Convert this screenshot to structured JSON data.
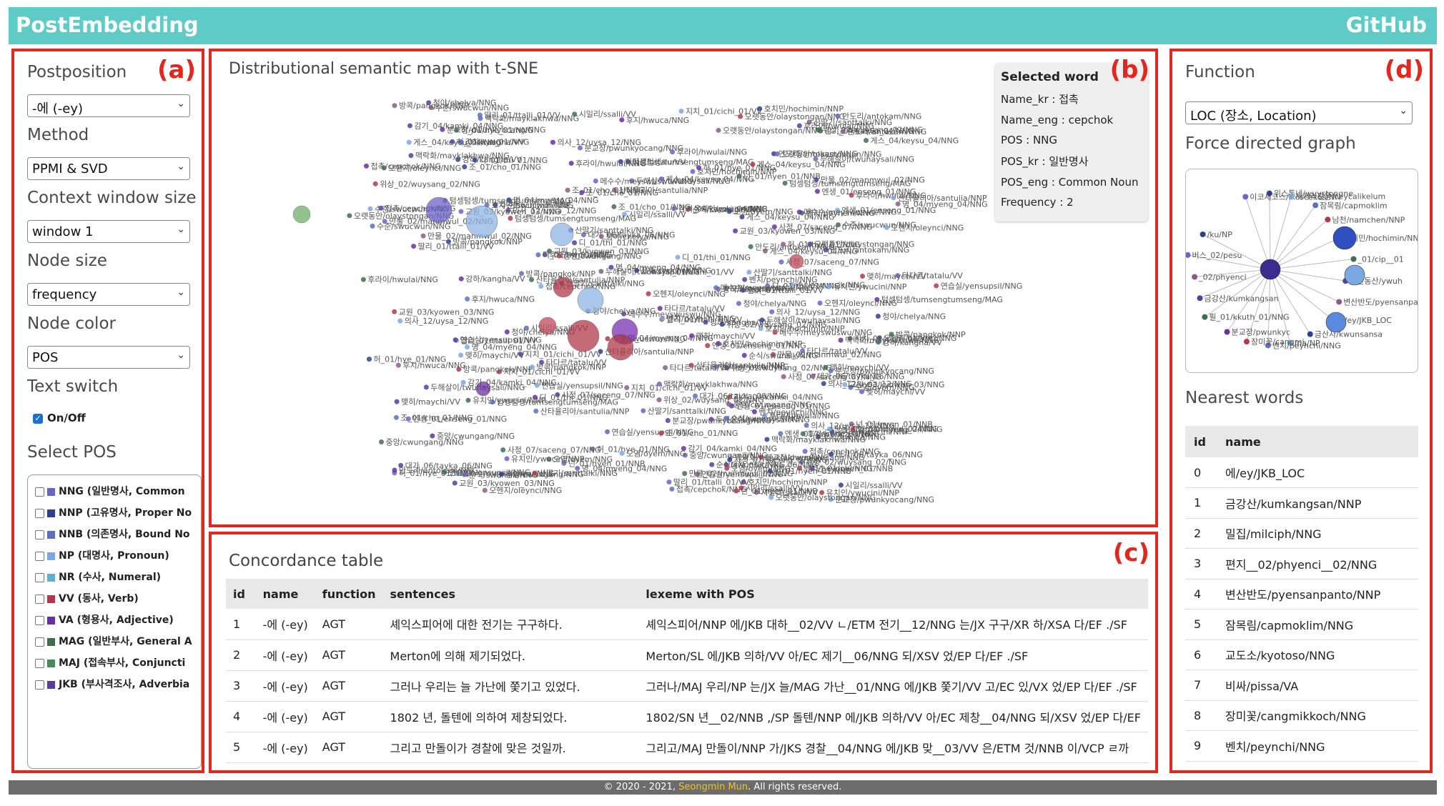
{
  "header": {
    "brand": "PostEmbedding",
    "github": "GitHub"
  },
  "panel_letters": {
    "a": "(a)",
    "b": "(b)",
    "c": "(c)",
    "d": "(d)"
  },
  "controls": {
    "postposition": {
      "label": "Postposition",
      "value": "-에 (-ey)"
    },
    "method": {
      "label": "Method",
      "value": "PPMI & SVD"
    },
    "context_window": {
      "label": "Context window size",
      "value": "window 1"
    },
    "node_size": {
      "label": "Node size",
      "value": "frequency"
    },
    "node_color": {
      "label": "Node color",
      "value": "POS"
    },
    "text_switch": {
      "label": "Text switch",
      "checkbox_label": "On/Off",
      "checked": true
    },
    "select_pos": {
      "label": "Select POS",
      "items": [
        {
          "text": "NNG (일반명사, Common",
          "color": "#6c63c9"
        },
        {
          "text": "NNP (고유명사, Proper No",
          "color": "#2f3f8f"
        },
        {
          "text": "NNB (의존명사, Bound No",
          "color": "#5a6fc0"
        },
        {
          "text": "NP (대명사, Pronoun)",
          "color": "#7aa8e0"
        },
        {
          "text": "NR (수사, Numeral)",
          "color": "#5fb0c8"
        },
        {
          "text": "VV (동사, Verb)",
          "color": "#b03a4a"
        },
        {
          "text": "VA (형용사, Adjective)",
          "color": "#6a2fa0"
        },
        {
          "text": "MAG (일반부사, General A",
          "color": "#3e6e4e"
        },
        {
          "text": "MAJ (접속부사, Conjuncti",
          "color": "#4a8a5a"
        },
        {
          "text": "JKB (부사격조사, Adverbia",
          "color": "#5b3c9e"
        }
      ]
    }
  },
  "map": {
    "title": "Distributional semantic map with t-SNE",
    "selected_word": {
      "title": "Selected word",
      "name_kr": "Name_kr : 접촉",
      "name_eng": "Name_eng : cepchok",
      "pos": "POS : NNG",
      "pos_kr": "POS_kr : 일반명사",
      "pos_eng": "POS_eng : Common Noun",
      "frequency": "Frequency : 2"
    },
    "labels": [
      "허_01/hye_01/NNG",
      "명_04/myeng_04/NNG",
      "호치민/hochimin/NNP",
      "산타율리아/santulia/NNP",
      "메수수/meyswuswu/NNG",
      "위상_02/wuysang_02/NNG",
      "벤치/peynchi/NNG",
      "사정_07/saceng_07/NNG",
      "오랫동안/olaystongan/NNG",
      "청야/chelya/NNG",
      "유치인/ywucini/NNP",
      "의사_12/uysa_12/NNG",
      "오염/oyem/NNG",
      "엔생_01/enseng_01/NNG",
      "넌_01/nyen_01/NNB",
      "교원_03/kyowen_03/NNG",
      "안도리/antokam/NNG",
      "만물_02/manmwul_02/NNG",
      "대가_06/tayka_06/NNG",
      "오헨지/oleynci/NNG",
      "맥락화/mayklakhwa/NNG",
      "수준/swucwun/NNG",
      "딸리_01/ttalli_01/VV",
      "조_01/cho_01/NNG",
      "감기_04/kamki_04/NNG",
      "후지/hwuca/NNG",
      "연습실/yensupsil/NNG",
      "두해살이/twuhaysali/NNG",
      "산딸기/santtalki/NNG",
      "접촉/cepchok/NNG",
      "시일리/ssalli/VV",
      "순식/swunsik/NNG",
      "텀셍텀셍/tumsengtumseng/MAG",
      "맺히/maychi/VV",
      "강하/kangha/VV",
      "지치_01/cichi_01/VV",
      "타다르/tatalu/VV",
      "게스_04/keysu_04/NNG",
      "디_01/thi_01/NNG",
      "방콕/pangkok/NNP",
      "분교장/pwunkyocang/NNG",
      "중앙/cwungang/NNG",
      "후라이/hwulai/NNG"
    ]
  },
  "concordance": {
    "title": "Concordance table",
    "columns": [
      "id",
      "name",
      "function",
      "sentences",
      "lexeme with POS"
    ],
    "rows": [
      [
        "1",
        "-에 (-ey)",
        "AGT",
        "셰익스피어에 대한 전기는 구구하다.",
        "셰익스피어/NNP 에/JKB 대하__02/VV ㄴ/ETM 전기__12/NNG 는/JX 구구/XR 하/XSA 다/EF ./SF"
      ],
      [
        "2",
        "-에 (-ey)",
        "AGT",
        "Merton에 의해 제기되었다.",
        "Merton/SL 에/JKB 의하/VV 아/EC 제기__06/NNG 되/XSV 었/EP 다/EF ./SF"
      ],
      [
        "3",
        "-에 (-ey)",
        "AGT",
        "그러나 우리는 늘 가난에 쫓기고 있었다.",
        "그러나/MAJ 우리/NP 는/JX 늘/MAG 가난__01/NNG 에/JKB 쫓기/VV 고/EC 있/VX 었/EP 다/EF ./SF"
      ],
      [
        "4",
        "-에 (-ey)",
        "AGT",
        "1802 년, 돌텐에 의하여 제창되었다.",
        "1802/SN 년__02/NNB ,/SP 돌텐/NNP 에/JKB 의하/VV 아/EC 제창__04/NNG 되/XSV 었/EP 다/EF"
      ],
      [
        "5",
        "-에 (-ey)",
        "AGT",
        "그리고 만돌이가 경찰에 맞은 것일까.",
        "그리고/MAJ 만돌이/NNP 가/JKS 경찰__04/NNG 에/JKB 맞__03/VV 은/ETM 것/NNB 이/VCP ㄹ까"
      ]
    ]
  },
  "function_panel": {
    "label": "Function",
    "value": "LOC (장소, Location)",
    "graph_title": "Force directed graph",
    "graph_labels": [
      "이코세코스/ikoscekos/NN",
      "위스통네/wuystongne",
      "제자리걸음/ceycalikelum",
      "잠목림/capmoklim",
      "남천/namchen/NNP",
      "호치민/hochimin/NNP",
      "_01/cip__01",
      "유한동산/ywuh",
      "변산반도/pyensanpanto/NNP",
      "에/ey/JKB_LOC",
      "금산사/kwunsansa",
      "/na/NP",
      "벤치/peynchi/NNG",
      "장미꽃/cangmi",
      "분교장/pwunkyc",
      "필_01/kkuth_01/NNG",
      "금강산/kumkangsan",
      "_02/phyenci",
      "버스_02/pesu",
      "/ku/NP"
    ],
    "nearest_title": "Nearest words",
    "nearest_columns": [
      "id",
      "name"
    ],
    "nearest": [
      [
        "0",
        "에/ey/JKB_LOC"
      ],
      [
        "1",
        "금강산/kumkangsan/NNP"
      ],
      [
        "2",
        "밀집/milciph/NNG"
      ],
      [
        "3",
        "편지__02/phyenci__02/NNG"
      ],
      [
        "4",
        "변산반도/pyensanpanto/NNP"
      ],
      [
        "5",
        "잠목림/capmoklim/NNG"
      ],
      [
        "6",
        "교도소/kyotoso/NNG"
      ],
      [
        "7",
        "비싸/pissa/VA"
      ],
      [
        "8",
        "장미꽃/cangmikkoch/NNG"
      ],
      [
        "9",
        "벤치/peynchi/NNG"
      ]
    ]
  },
  "footer": {
    "prefix": "© 2020 - 2021, ",
    "author": "Seongmin Mun",
    "suffix": ". All rights reserved."
  }
}
